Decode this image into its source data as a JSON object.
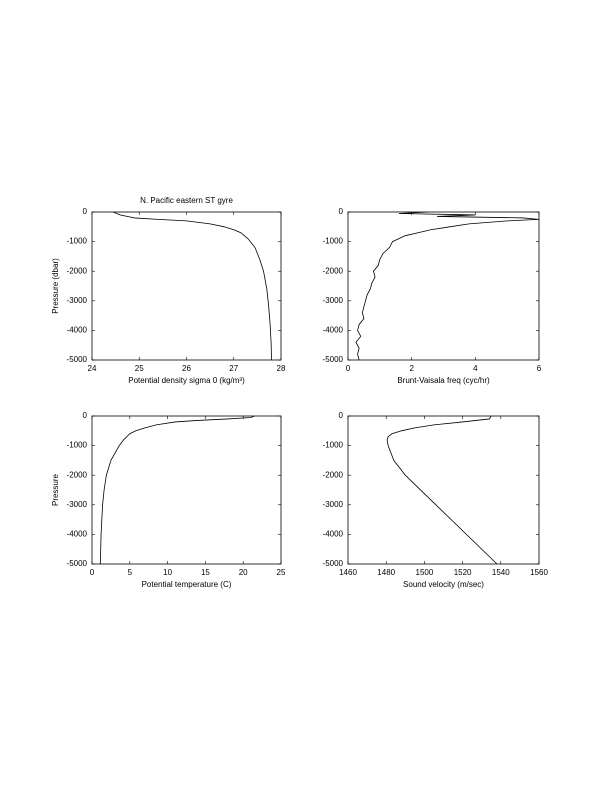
{
  "chart_data": [
    {
      "type": "line",
      "title": "N. Pacific eastern ST gyre",
      "y_label": "Pressure (dbar)",
      "x_label": "Potential density sigma 0 (kg/m³)",
      "color": "#000000",
      "x": [
        24.45,
        24.6,
        24.9,
        25.4,
        26.0,
        26.5,
        26.8,
        27.0,
        27.15,
        27.3,
        27.45,
        27.55,
        27.63,
        27.7,
        27.74,
        27.77,
        27.79,
        27.8
      ],
      "values": [
        0,
        -100,
        -200,
        -250,
        -300,
        -400,
        -500,
        -600,
        -700,
        -900,
        -1200,
        -1600,
        -2000,
        -2600,
        -3200,
        -3800,
        -4400,
        -5000
      ],
      "xlim": [
        24,
        28
      ],
      "xticks": [
        24,
        25,
        26,
        27,
        28
      ],
      "ylim": [
        -5000,
        0
      ],
      "yticks": [
        -5000,
        -4000,
        -3000,
        -2000,
        -1000,
        0
      ]
    },
    {
      "type": "line",
      "x_label": "Brunt-Vaisala freq (cyc/hr)",
      "color": "#000000",
      "x": [
        2.5,
        1.6,
        4.0,
        2.8,
        5.5,
        6.0,
        5.0,
        3.8,
        3.2,
        2.6,
        2.2,
        1.8,
        1.6,
        1.4,
        1.3,
        1.1,
        1.0,
        0.95,
        0.8,
        0.85,
        0.75,
        0.7,
        0.6,
        0.55,
        0.5,
        0.45,
        0.5,
        0.35,
        0.3,
        0.4,
        0.25,
        0.35,
        0.3,
        0.35
      ],
      "values": [
        0,
        -50,
        -100,
        -150,
        -200,
        -250,
        -300,
        -400,
        -500,
        -600,
        -700,
        -800,
        -900,
        -1000,
        -1200,
        -1400,
        -1600,
        -1800,
        -2000,
        -2200,
        -2400,
        -2600,
        -2800,
        -3000,
        -3200,
        -3400,
        -3600,
        -3800,
        -4000,
        -4200,
        -4400,
        -4600,
        -4800,
        -5000
      ],
      "xlim": [
        0,
        6
      ],
      "xticks": [
        0,
        2,
        4,
        6
      ],
      "ylim": [
        -5000,
        0
      ],
      "yticks": [
        -5000,
        -4000,
        -3000,
        -2000,
        -1000,
        0
      ]
    },
    {
      "type": "line",
      "y_label": "Pressure",
      "x_label": "Potential temperature (C)",
      "color": "#000000",
      "x": [
        21.5,
        21,
        18,
        14,
        11,
        8.5,
        7,
        5.8,
        5,
        4.2,
        3.6,
        2.5,
        1.9,
        1.6,
        1.4,
        1.2,
        1.1
      ],
      "values": [
        0,
        -50,
        -100,
        -150,
        -200,
        -300,
        -400,
        -500,
        -600,
        -800,
        -1000,
        -1500,
        -2000,
        -2500,
        -3000,
        -4000,
        -5000
      ],
      "xlim": [
        0,
        25
      ],
      "xticks": [
        0,
        5,
        10,
        15,
        20,
        25
      ],
      "ylim": [
        -5000,
        0
      ],
      "yticks": [
        -5000,
        -4000,
        -3000,
        -2000,
        -1000,
        0
      ]
    },
    {
      "type": "line",
      "x_label": "Sound velocity (m/sec)",
      "color": "#000000",
      "x": [
        1535,
        1534,
        1520,
        1505,
        1495,
        1488,
        1483,
        1481,
        1480.5,
        1481,
        1484,
        1490,
        1506,
        1522,
        1538
      ],
      "values": [
        0,
        -100,
        -200,
        -300,
        -400,
        -500,
        -600,
        -700,
        -800,
        -1000,
        -1500,
        -2000,
        -3000,
        -4000,
        -5000
      ],
      "xlim": [
        1460,
        1560
      ],
      "xticks": [
        1460,
        1480,
        1500,
        1520,
        1540,
        1560
      ],
      "ylim": [
        -5000,
        0
      ],
      "yticks": [
        -5000,
        -4000,
        -3000,
        -2000,
        -1000,
        0
      ]
    }
  ]
}
